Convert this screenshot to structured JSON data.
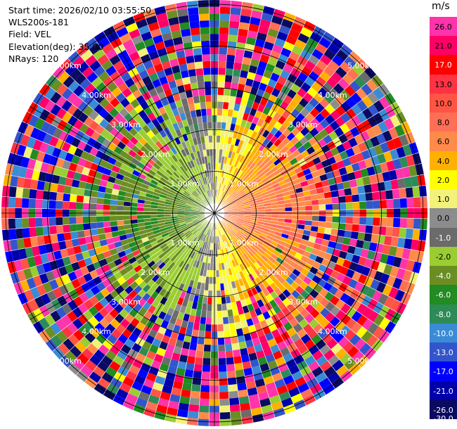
{
  "info": {
    "start_time": "Start time: 2026/02/10 03:55:50",
    "instrument": "WLS200s-181",
    "field": "Field: VEL",
    "elevation": "Elevation(deg): 35.00",
    "nrays": "NRays: 120"
  },
  "colorbar": {
    "units": "m/s",
    "ticks": [
      "26.0",
      "21.0",
      "17.0",
      "13.0",
      "10.0",
      "8.0",
      "6.0",
      "4.0",
      "2.0",
      "1.0",
      "0.0",
      "-1.0",
      "-2.0",
      "-4.0",
      "-6.0",
      "-8.0",
      "-10.0",
      "-13.0",
      "-17.0",
      "-21.0",
      "-26.0",
      "-30.0"
    ],
    "colors": [
      "#ff33aa",
      "#ff0066",
      "#ff0000",
      "#ff3344",
      "#ff5544",
      "#ff6f55",
      "#ff8a4a",
      "#ffb000",
      "#ffff00",
      "#f2f27a",
      "#8c8c8c",
      "#6b6b6b",
      "#9acd32",
      "#6b8e23",
      "#228b22",
      "#2e8b57",
      "#3a8bd6",
      "#3355cc",
      "#0000ff",
      "#0000aa",
      "#0a0a60"
    ]
  },
  "chart_data": {
    "type": "heatmap",
    "projection": "polar-ppi",
    "field": "VEL",
    "units": "m/s",
    "nrays": 120,
    "range_max_km": 5.0,
    "ring_labels": [
      "1.00km",
      "2.00km",
      "3.00km",
      "4.00km",
      "5.00km"
    ],
    "vmin": -30.0,
    "vmax": 26.0,
    "description_of_pattern": "Positive velocities (yellow/orange) toward east, negative (blue/green) toward west, noisy multicolored outer ranges"
  }
}
